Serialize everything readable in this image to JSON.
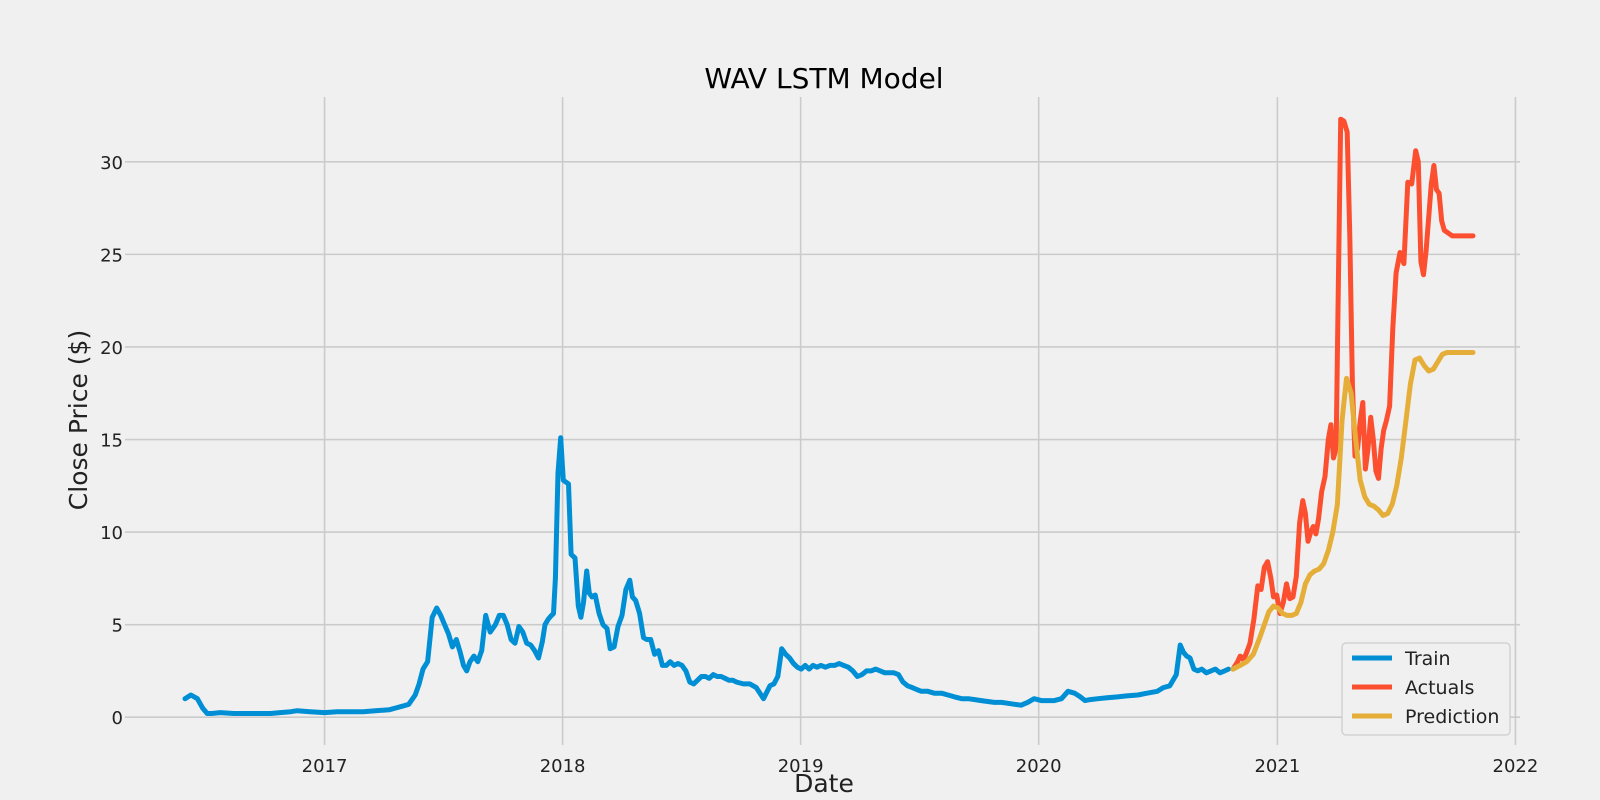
{
  "chart_data": {
    "type": "line",
    "title": "WAV LSTM Model",
    "xlabel": "Date",
    "ylabel": "Close Price ($)",
    "xlim": [
      "2016-03-01",
      "2022-01-08"
    ],
    "ylim": [
      -1.5,
      33.5
    ],
    "x_ticks": [
      "2017",
      "2018",
      "2019",
      "2020",
      "2021",
      "2022"
    ],
    "y_ticks": [
      "0",
      "5",
      "10",
      "15",
      "20",
      "25",
      "30"
    ],
    "grid": true,
    "legend_position": "bottom-right",
    "colors": {
      "Train": "#008fd5",
      "Actuals": "#fc4f30",
      "Prediction": "#e5ae38"
    },
    "series": [
      {
        "name": "Train",
        "x": [
          "2016-06-01",
          "2016-06-10",
          "2016-06-20",
          "2016-06-28",
          "2016-07-05",
          "2016-07-12",
          "2016-07-25",
          "2016-08-15",
          "2016-09-01",
          "2016-09-20",
          "2016-10-10",
          "2016-10-25",
          "2016-11-10",
          "2016-11-20",
          "2016-12-10",
          "2017-01-01",
          "2017-01-20",
          "2017-02-10",
          "2017-03-01",
          "2017-03-20",
          "2017-04-10",
          "2017-04-20",
          "2017-05-01",
          "2017-05-10",
          "2017-05-20",
          "2017-05-26",
          "2017-06-01",
          "2017-06-08",
          "2017-06-15",
          "2017-06-22",
          "2017-06-28",
          "2017-07-04",
          "2017-07-10",
          "2017-07-16",
          "2017-07-22",
          "2017-07-28",
          "2017-08-02",
          "2017-08-07",
          "2017-08-12",
          "2017-08-18",
          "2017-08-24",
          "2017-08-30",
          "2017-09-05",
          "2017-09-12",
          "2017-09-20",
          "2017-09-26",
          "2017-10-02",
          "2017-10-08",
          "2017-10-14",
          "2017-10-20",
          "2017-10-26",
          "2017-11-01",
          "2017-11-07",
          "2017-11-13",
          "2017-11-19",
          "2017-11-25",
          "2017-12-01",
          "2017-12-05",
          "2017-12-10",
          "2017-12-15",
          "2017-12-18",
          "2017-12-21",
          "2017-12-25",
          "2017-12-29",
          "2018-01-02",
          "2018-01-06",
          "2018-01-10",
          "2018-01-14",
          "2018-01-20",
          "2018-01-25",
          "2018-01-29",
          "2018-02-02",
          "2018-02-07",
          "2018-02-11",
          "2018-02-15",
          "2018-02-20",
          "2018-02-26",
          "2018-03-04",
          "2018-03-10",
          "2018-03-15",
          "2018-03-21",
          "2018-03-27",
          "2018-04-02",
          "2018-04-08",
          "2018-04-14",
          "2018-04-18",
          "2018-04-23",
          "2018-04-29",
          "2018-05-05",
          "2018-05-10",
          "2018-05-16",
          "2018-05-22",
          "2018-05-28",
          "2018-06-03",
          "2018-06-09",
          "2018-06-15",
          "2018-06-21",
          "2018-06-27",
          "2018-07-03",
          "2018-07-09",
          "2018-07-15",
          "2018-07-21",
          "2018-07-27",
          "2018-08-02",
          "2018-08-08",
          "2018-08-14",
          "2018-08-20",
          "2018-08-26",
          "2018-09-01",
          "2018-09-07",
          "2018-09-13",
          "2018-09-19",
          "2018-09-25",
          "2018-10-05",
          "2018-10-15",
          "2018-10-25",
          "2018-11-05",
          "2018-11-15",
          "2018-11-21",
          "2018-11-27",
          "2018-12-03",
          "2018-12-09",
          "2018-12-15",
          "2018-12-21",
          "2018-12-27",
          "2019-01-02",
          "2019-01-08",
          "2019-01-14",
          "2019-01-20",
          "2019-01-26",
          "2019-02-01",
          "2019-02-08",
          "2019-02-15",
          "2019-02-22",
          "2019-03-01",
          "2019-03-08",
          "2019-03-15",
          "2019-03-22",
          "2019-03-29",
          "2019-04-05",
          "2019-04-12",
          "2019-04-19",
          "2019-04-26",
          "2019-05-03",
          "2019-05-10",
          "2019-05-17",
          "2019-05-24",
          "2019-05-31",
          "2019-06-07",
          "2019-06-14",
          "2019-06-21",
          "2019-06-28",
          "2019-07-05",
          "2019-07-15",
          "2019-07-25",
          "2019-08-05",
          "2019-08-15",
          "2019-08-25",
          "2019-09-05",
          "2019-09-15",
          "2019-09-25",
          "2019-10-05",
          "2019-10-15",
          "2019-10-25",
          "2019-11-05",
          "2019-11-15",
          "2019-11-25",
          "2019-12-05",
          "2019-12-15",
          "2019-12-25",
          "2020-01-05",
          "2020-01-15",
          "2020-01-25",
          "2020-02-05",
          "2020-02-15",
          "2020-02-25",
          "2020-03-05",
          "2020-03-12",
          "2020-03-20",
          "2020-04-01",
          "2020-04-15",
          "2020-05-01",
          "2020-05-15",
          "2020-06-01",
          "2020-06-15",
          "2020-07-01",
          "2020-07-10",
          "2020-07-20",
          "2020-07-30",
          "2020-08-05",
          "2020-08-10",
          "2020-08-15",
          "2020-08-20",
          "2020-08-26",
          "2020-09-01",
          "2020-09-07",
          "2020-09-14",
          "2020-09-21",
          "2020-09-28",
          "2020-10-05",
          "2020-10-12",
          "2020-10-18"
        ],
        "values": [
          1.0,
          1.2,
          1.0,
          0.5,
          0.2,
          0.2,
          0.25,
          0.2,
          0.2,
          0.2,
          0.2,
          0.25,
          0.3,
          0.35,
          0.3,
          0.25,
          0.3,
          0.3,
          0.3,
          0.35,
          0.4,
          0.5,
          0.6,
          0.7,
          1.2,
          1.8,
          2.6,
          3.0,
          5.4,
          5.9,
          5.5,
          5.0,
          4.5,
          3.8,
          4.2,
          3.5,
          2.8,
          2.5,
          3.0,
          3.3,
          3.0,
          3.6,
          5.5,
          4.6,
          5.0,
          5.5,
          5.5,
          5.0,
          4.2,
          4.0,
          4.9,
          4.6,
          4.0,
          3.9,
          3.6,
          3.2,
          4.1,
          5.0,
          5.3,
          5.5,
          5.6,
          7.5,
          13.2,
          15.1,
          12.8,
          12.7,
          12.6,
          8.8,
          8.6,
          6.0,
          5.4,
          6.2,
          7.9,
          6.7,
          6.5,
          6.6,
          5.6,
          5.0,
          4.8,
          3.7,
          3.8,
          4.9,
          5.5,
          6.9,
          7.4,
          6.5,
          6.3,
          5.6,
          4.3,
          4.2,
          4.2,
          3.4,
          3.6,
          2.8,
          2.8,
          3.0,
          2.8,
          2.9,
          2.8,
          2.5,
          1.9,
          1.8,
          2.0,
          2.2,
          2.2,
          2.1,
          2.3,
          2.2,
          2.2,
          2.1,
          2.0,
          2.0,
          1.9,
          1.8,
          1.8,
          1.6,
          1.0,
          1.7,
          1.8,
          2.2,
          3.7,
          3.4,
          3.2,
          2.9,
          2.7,
          2.6,
          2.8,
          2.6,
          2.8,
          2.7,
          2.8,
          2.7,
          2.8,
          2.8,
          2.9,
          2.8,
          2.7,
          2.5,
          2.2,
          2.3,
          2.5,
          2.5,
          2.6,
          2.5,
          2.4,
          2.4,
          2.4,
          2.3,
          1.9,
          1.7,
          1.6,
          1.5,
          1.4,
          1.4,
          1.3,
          1.3,
          1.2,
          1.1,
          1.0,
          1.0,
          0.95,
          0.9,
          0.85,
          0.8,
          0.8,
          0.75,
          0.7,
          0.65,
          0.8,
          1.0,
          0.9,
          0.9,
          0.9,
          1.0,
          1.4,
          1.3,
          1.1,
          0.9,
          0.95,
          1.0,
          1.05,
          1.1,
          1.15,
          1.2,
          1.3,
          1.4,
          1.6,
          1.7,
          2.3,
          3.9,
          3.5,
          3.3,
          3.2,
          2.6,
          2.5,
          2.6,
          2.4,
          2.5,
          2.6,
          2.4,
          2.5,
          2.6
        ]
      },
      {
        "name": "Actuals",
        "x": [
          "2020-10-25",
          "2020-11-01",
          "2020-11-05",
          "2020-11-10",
          "2020-11-15",
          "2020-11-20",
          "2020-11-26",
          "2020-12-02",
          "2020-12-07",
          "2020-12-12",
          "2020-12-17",
          "2020-12-22",
          "2020-12-26",
          "2020-12-31",
          "2021-01-05",
          "2021-01-10",
          "2021-01-15",
          "2021-01-20",
          "2021-01-25",
          "2021-01-30",
          "2021-02-04",
          "2021-02-09",
          "2021-02-13",
          "2021-02-17",
          "2021-02-21",
          "2021-02-25",
          "2021-03-01",
          "2021-03-05",
          "2021-03-10",
          "2021-03-15",
          "2021-03-20",
          "2021-03-24",
          "2021-03-28",
          "2021-04-01",
          "2021-04-04",
          "2021-04-08",
          "2021-04-13",
          "2021-04-18",
          "2021-04-22",
          "2021-04-26",
          "2021-04-30",
          "2021-05-04",
          "2021-05-08",
          "2021-05-12",
          "2021-05-16",
          "2021-05-20",
          "2021-05-24",
          "2021-05-28",
          "2021-06-01",
          "2021-06-05",
          "2021-06-09",
          "2021-06-13",
          "2021-06-17",
          "2021-06-22",
          "2021-06-27",
          "2021-07-02",
          "2021-07-08",
          "2021-07-14",
          "2021-07-20",
          "2021-07-26",
          "2021-08-01",
          "2021-08-05",
          "2021-08-09",
          "2021-08-13",
          "2021-08-17",
          "2021-08-21",
          "2021-08-25",
          "2021-08-29",
          "2021-09-02",
          "2021-09-06",
          "2021-09-10",
          "2021-09-14",
          "2021-09-18",
          "2021-09-22",
          "2021-09-26",
          "2021-09-30",
          "2021-10-04",
          "2021-10-08",
          "2021-10-12",
          "2021-10-16",
          "2021-10-20",
          "2021-10-24",
          "2021-10-28"
        ],
        "values": [
          2.6,
          3.0,
          3.3,
          3.1,
          3.5,
          4.0,
          5.3,
          7.1,
          6.9,
          8.1,
          8.4,
          7.5,
          6.5,
          6.6,
          5.6,
          6.2,
          7.2,
          6.4,
          6.5,
          7.6,
          10.5,
          11.7,
          11.0,
          9.5,
          10.0,
          10.3,
          9.9,
          10.7,
          12.2,
          13.0,
          15.0,
          15.8,
          14.0,
          14.5,
          22.0,
          32.3,
          32.2,
          31.6,
          26.0,
          18.0,
          14.1,
          14.5,
          16.0,
          17.0,
          13.4,
          14.5,
          16.2,
          15.0,
          13.3,
          12.9,
          14.5,
          15.5,
          16.0,
          16.8,
          21.0,
          24.0,
          25.1,
          24.5,
          28.9,
          28.8,
          30.6,
          30.0,
          24.6,
          23.9,
          25.2,
          27.0,
          28.8,
          29.8,
          28.5,
          28.3,
          26.8,
          26.3,
          26.2,
          26.1,
          26.0,
          26.0,
          26.0,
          26.0,
          26.0,
          26.0,
          26.0,
          26.0,
          26.0
        ]
      },
      {
        "name": "Prediction",
        "x": [
          "2020-10-25",
          "2020-11-05",
          "2020-11-15",
          "2020-11-25",
          "2020-12-05",
          "2020-12-12",
          "2020-12-19",
          "2020-12-26",
          "2021-01-02",
          "2021-01-09",
          "2021-01-16",
          "2021-01-23",
          "2021-01-30",
          "2021-02-06",
          "2021-02-13",
          "2021-02-20",
          "2021-02-27",
          "2021-03-06",
          "2021-03-13",
          "2021-03-20",
          "2021-03-27",
          "2021-04-03",
          "2021-04-10",
          "2021-04-17",
          "2021-04-24",
          "2021-05-01",
          "2021-05-08",
          "2021-05-15",
          "2021-05-22",
          "2021-05-29",
          "2021-06-05",
          "2021-06-12",
          "2021-06-19",
          "2021-06-26",
          "2021-07-03",
          "2021-07-10",
          "2021-07-17",
          "2021-07-24",
          "2021-07-31",
          "2021-08-07",
          "2021-08-14",
          "2021-08-21",
          "2021-08-28",
          "2021-09-04",
          "2021-09-11",
          "2021-09-18",
          "2021-09-25",
          "2021-10-02",
          "2021-10-09",
          "2021-10-16",
          "2021-10-23",
          "2021-10-28"
        ],
        "values": [
          2.6,
          2.8,
          3.0,
          3.4,
          4.3,
          5.0,
          5.7,
          6.0,
          5.9,
          5.6,
          5.5,
          5.5,
          5.6,
          6.2,
          7.2,
          7.7,
          7.9,
          8.0,
          8.3,
          9.0,
          10.0,
          11.5,
          16.0,
          18.3,
          17.5,
          15.0,
          12.8,
          11.9,
          11.5,
          11.4,
          11.2,
          10.9,
          11.0,
          11.5,
          12.5,
          14.0,
          16.0,
          18.0,
          19.3,
          19.4,
          19.0,
          18.7,
          18.8,
          19.2,
          19.6,
          19.7,
          19.7,
          19.7,
          19.7,
          19.7,
          19.7,
          19.7
        ]
      }
    ]
  }
}
